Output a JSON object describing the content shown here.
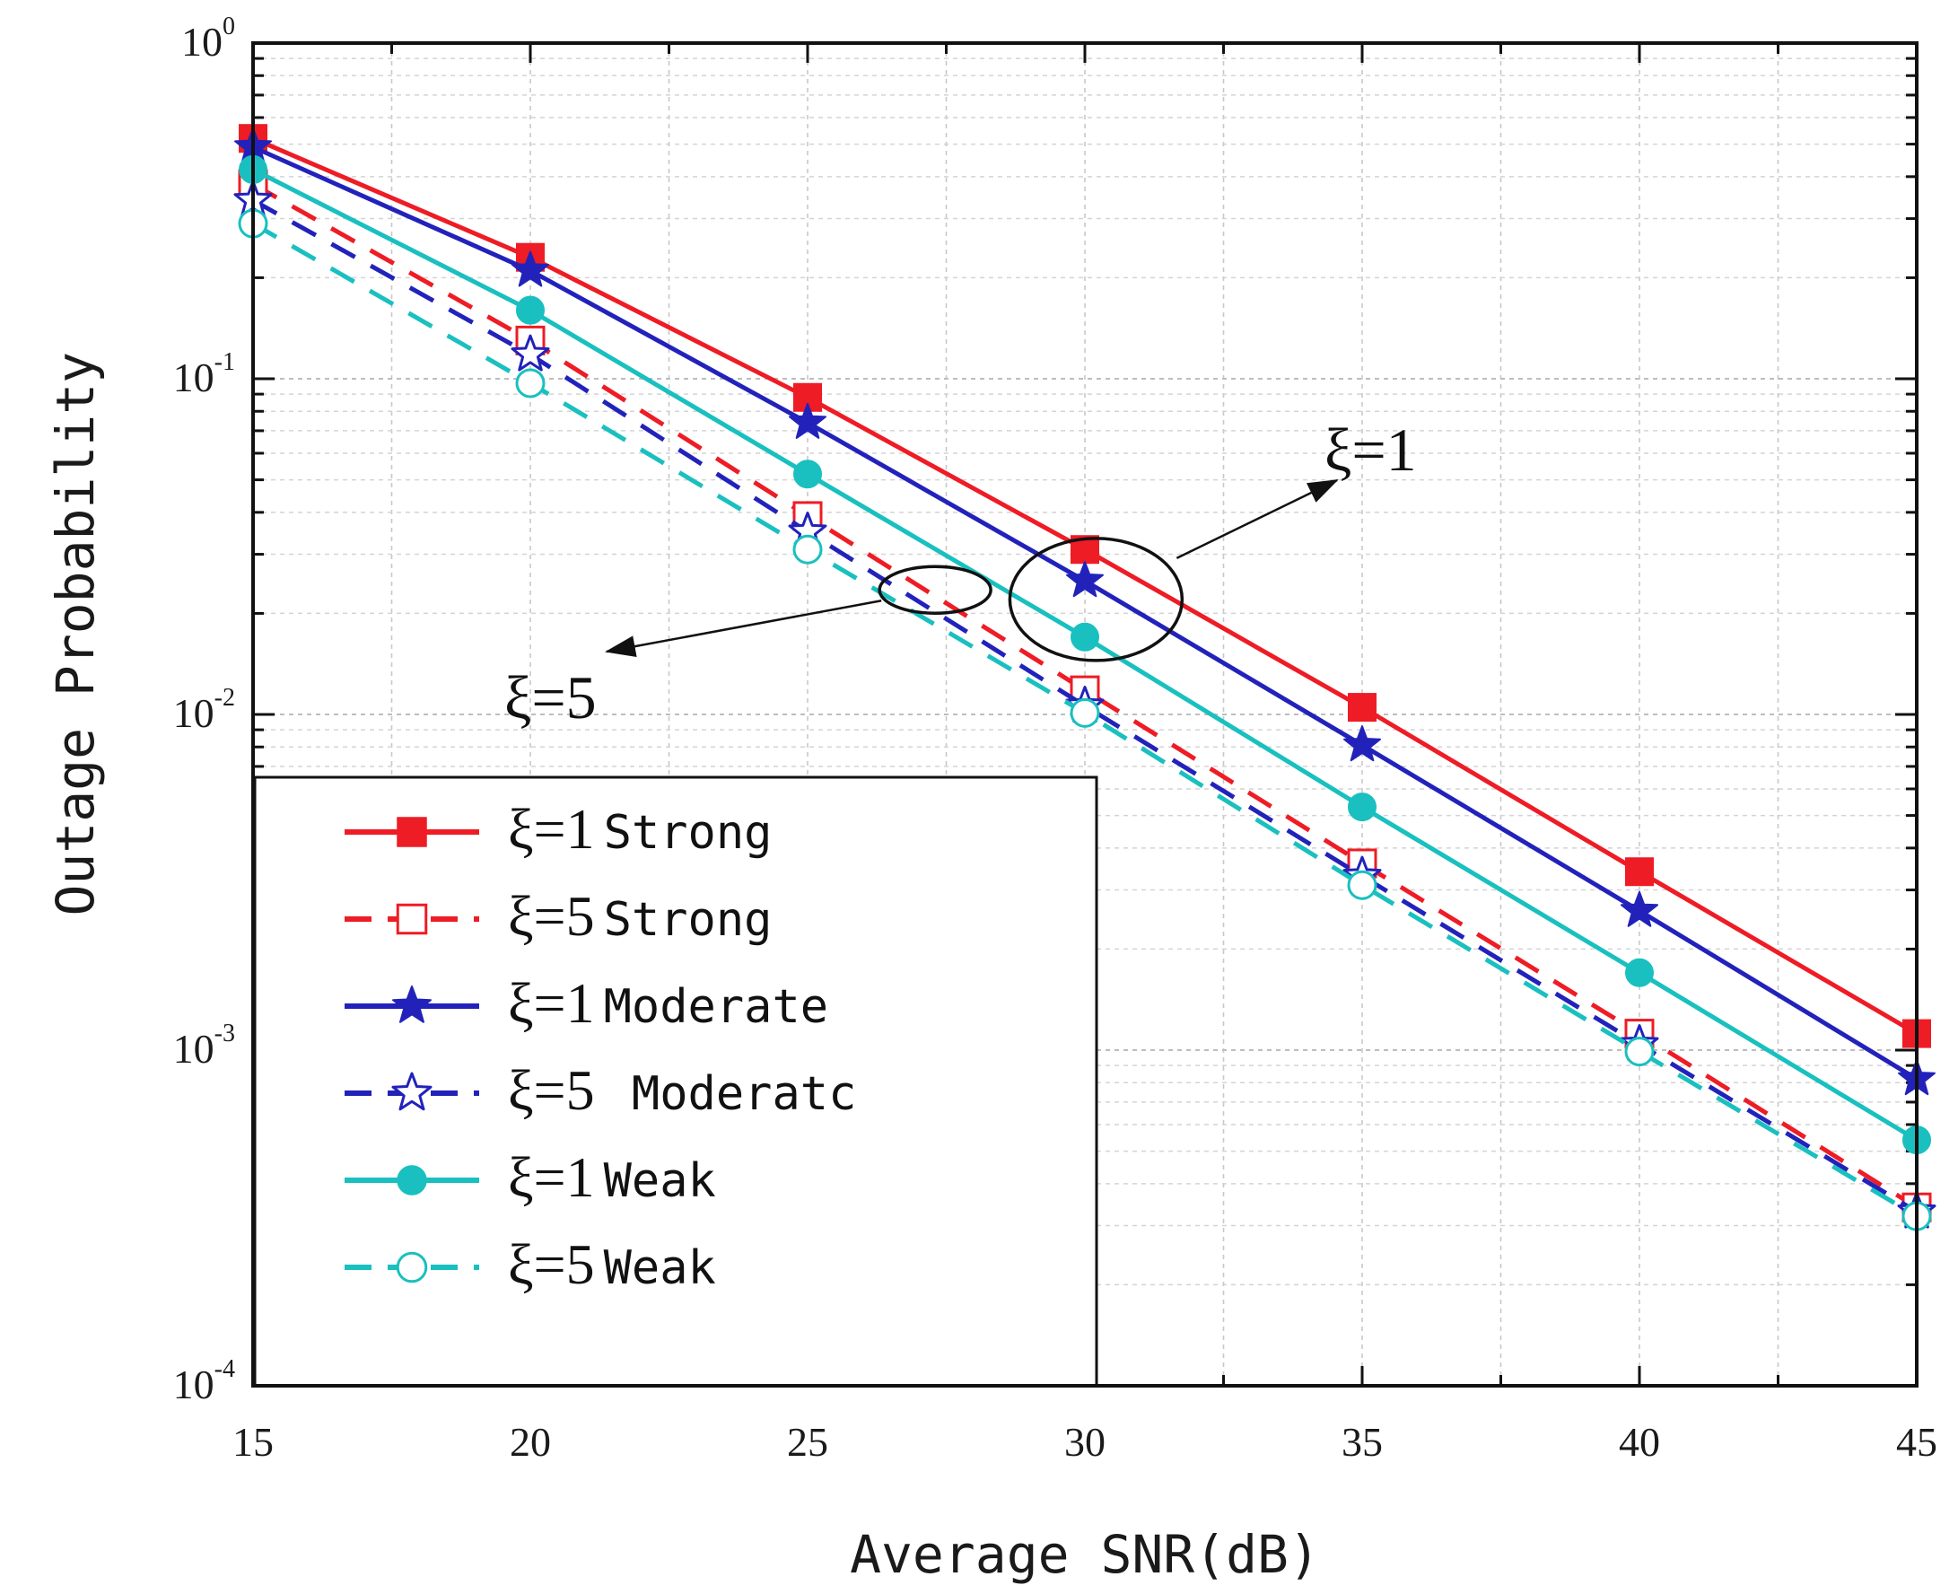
{
  "chart_data": {
    "type": "line",
    "xlabel": "Average SNR(dB)",
    "ylabel": "Outage Probability",
    "x": [
      15,
      20,
      25,
      30,
      35,
      40,
      45
    ],
    "xlim": [
      15,
      45
    ],
    "x_ticks": [
      "15",
      "20",
      "25",
      "30",
      "35",
      "40",
      "45"
    ],
    "ylim": [
      0.0001,
      1
    ],
    "y_scale": "log",
    "y_ticks": [
      {
        "value": 1,
        "base": "10",
        "exp": "0"
      },
      {
        "value": 0.1,
        "base": "10",
        "exp": "-1"
      },
      {
        "value": 0.01,
        "base": "10",
        "exp": "-2"
      },
      {
        "value": 0.001,
        "base": "10",
        "exp": "-3"
      },
      {
        "value": 0.0001,
        "base": "10",
        "exp": "-4"
      }
    ],
    "grid": true,
    "legend_position": "bottom-left",
    "series": [
      {
        "name": "ξ=1 Strong",
        "xi": "ξ=1",
        "label": "Strong",
        "color": "#ee1c25",
        "dash": "solid",
        "marker": "square-filled",
        "values": [
          0.52,
          0.23,
          0.088,
          0.031,
          0.0105,
          0.0034,
          0.00112
        ]
      },
      {
        "name": "ξ=5 Strong",
        "xi": "ξ=5",
        "label": "Strong",
        "color": "#ee1c25",
        "dash": "dashed",
        "marker": "square-open",
        "values": [
          0.38,
          0.13,
          0.039,
          0.0118,
          0.0036,
          0.00112,
          0.00034
        ]
      },
      {
        "name": "ξ=1 Moderate",
        "xi": "ξ=1",
        "label": "Moderate",
        "color": "#2222bb",
        "dash": "solid",
        "marker": "star-filled",
        "values": [
          0.49,
          0.21,
          0.074,
          0.025,
          0.0081,
          0.0026,
          0.00082
        ]
      },
      {
        "name": "ξ=5 Moderate",
        "xi": "ξ=5",
        "label": " Moderatc",
        "color": "#2222bb",
        "dash": "dashed",
        "marker": "star-open",
        "values": [
          0.34,
          0.118,
          0.035,
          0.0106,
          0.0033,
          0.00104,
          0.00033
        ]
      },
      {
        "name": "ξ=1 Weak",
        "xi": "ξ=1",
        "label": "Weak",
        "color": "#19c0bf",
        "dash": "solid",
        "marker": "circle-filled",
        "values": [
          0.42,
          0.16,
          0.052,
          0.017,
          0.0053,
          0.0017,
          0.00054
        ]
      },
      {
        "name": "ξ=5 Weak",
        "xi": "ξ=5",
        "label": "Weak",
        "color": "#19c0bf",
        "dash": "dashed",
        "marker": "circle-open",
        "values": [
          0.29,
          0.097,
          0.031,
          0.0101,
          0.0031,
          0.00099,
          0.00032
        ]
      }
    ],
    "annotations": [
      {
        "text": "ξ=1",
        "target": "solid curves near SNR 30 dB"
      },
      {
        "text": "ξ=5",
        "target": "dashed curves near SNR 27 dB"
      }
    ]
  }
}
